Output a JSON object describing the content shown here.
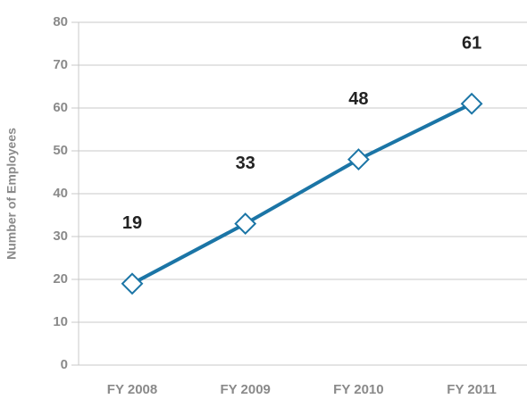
{
  "chart_data": {
    "type": "line",
    "y_label": "Number of Employees",
    "categories": [
      "FY 2008",
      "FY 2009",
      "FY 2010",
      "FY 2011"
    ],
    "values": [
      19,
      33,
      48,
      61
    ],
    "color": "#1b75a6",
    "ylim": [
      0,
      80
    ],
    "yticks": [
      0,
      10,
      20,
      30,
      40,
      50,
      60,
      70,
      80
    ],
    "grid": true
  }
}
